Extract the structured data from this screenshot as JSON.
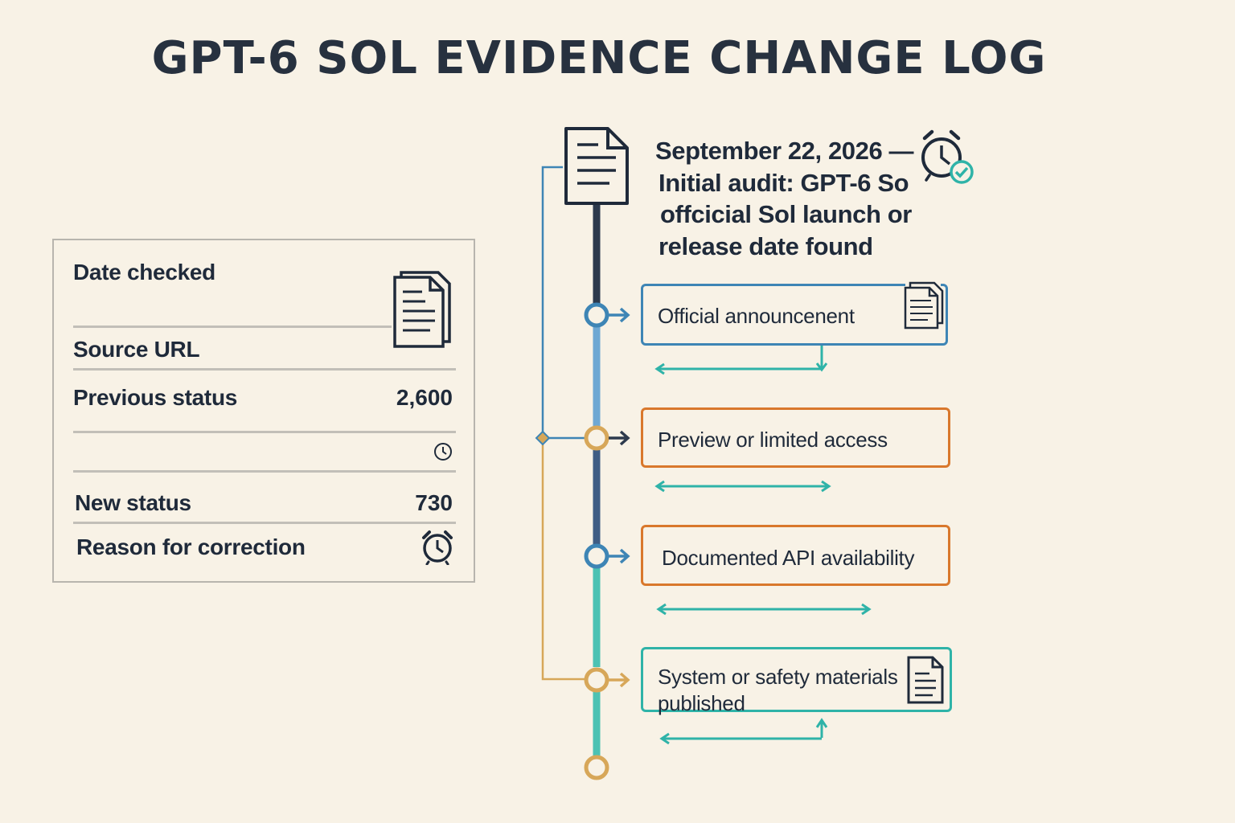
{
  "title": "GPT-6 SOL EVIDENCE CHANGE LOG",
  "panel": {
    "date_checked": "Date checked",
    "source_url": "Source URL",
    "previous_status": "Previous status",
    "previous_value": "2,600",
    "new_status": "New status",
    "new_value": "730",
    "reason": "Reason for correction"
  },
  "header": {
    "line1": "September 22, 2026 —",
    "line2": "Initial audit: GPT-6 So",
    "line3": "offcicial  Sol launch or",
    "line4": "release date found"
  },
  "milestones": [
    {
      "label": "Official announcenent",
      "color": "#3e85b5"
    },
    {
      "label": "Preview or limited access",
      "color": "#d9782c"
    },
    {
      "label": "Documented API availability",
      "color": "#d9782c"
    },
    {
      "label_line1": "System or safety materials",
      "label_line2": "published",
      "color": "#2fb3a8"
    }
  ],
  "colors": {
    "background": "#f8f2e6",
    "navy": "#2d3a4d",
    "blue": "#3e85b5",
    "orange": "#d9782c",
    "teal": "#2fb3a8",
    "gold": "#d7a759"
  },
  "icons": [
    "document-icon",
    "stacked-documents-icon",
    "alarm-clock-icon",
    "clock-icon",
    "check-badge-icon"
  ]
}
